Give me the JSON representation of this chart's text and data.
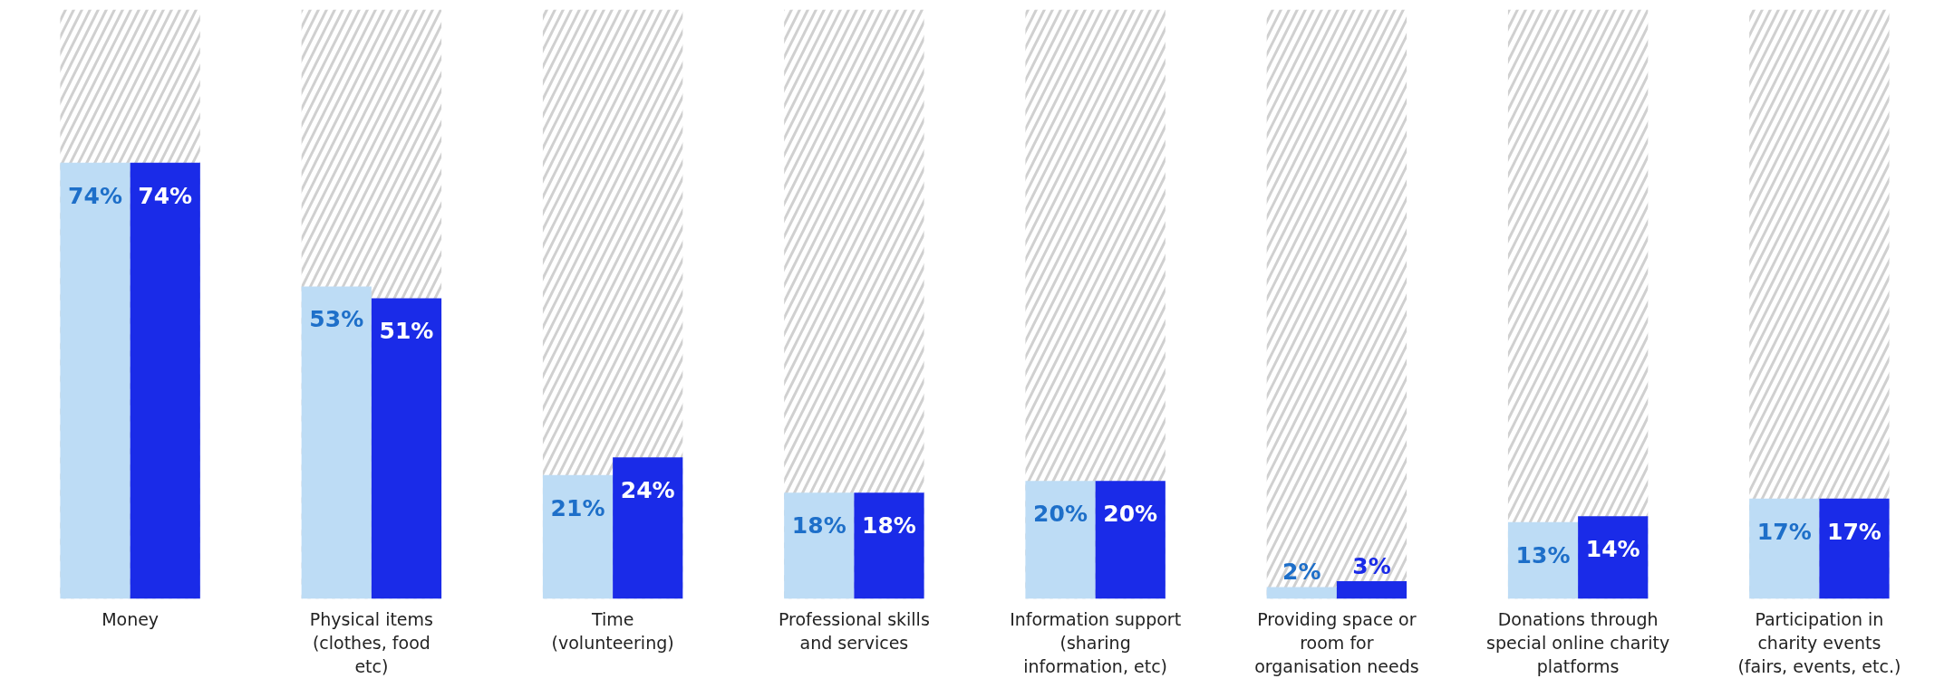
{
  "chart_data": {
    "type": "bar",
    "categories": [
      "Money",
      "Physical items\n(clothes, food\netc)",
      "Time\n(volunteering)",
      "Professional skills\nand services",
      "Information support\n(sharing\ninformation, etc)",
      "Providing space or\nroom for\norganisation needs",
      "Donations through\nspecial online charity\nplatforms",
      "Participation in\ncharity events\n(fairs, events, etc.)"
    ],
    "series": [
      {
        "color": "#bddcf5",
        "values": [
          74,
          53,
          21,
          18,
          20,
          2,
          13,
          17
        ],
        "value_labels": [
          "74%",
          "53%",
          "21%",
          "18%",
          "20%",
          "2%",
          "13%",
          "17%"
        ]
      },
      {
        "color": "#1a2be8",
        "values": [
          74,
          51,
          24,
          18,
          20,
          3,
          14,
          17
        ],
        "value_labels": [
          "74%",
          "51%",
          "24%",
          "18%",
          "20%",
          "3%",
          "14%",
          "17%"
        ]
      }
    ],
    "bands": [
      {
        "axis": "x",
        "from": "Money",
        "to": "Money",
        "color": "#d0d0d0"
      },
      {
        "axis": "x",
        "from": "Physical items\n(clothes, food\netc)",
        "to": "Physical items\n(clothes, food\netc)",
        "color": "#d0d0d0"
      },
      {
        "axis": "x",
        "from": "Time\n(volunteering)",
        "to": "Time\n(volunteering)",
        "color": "#d0d0d0"
      },
      {
        "axis": "x",
        "from": "Professional skills\nand services",
        "to": "Professional skills\nand services",
        "color": "#d0d0d0"
      },
      {
        "axis": "x",
        "from": "Information support\n(sharing\ninformation, etc)",
        "to": "Information support\n(sharing\ninformation, etc)",
        "color": "#d0d0d0"
      },
      {
        "axis": "x",
        "from": "Providing space or\nroom for\norganisation needs",
        "to": "Providing space or\nroom for\norganisation needs",
        "color": "#d0d0d0"
      },
      {
        "axis": "x",
        "from": "Donations through\nspecial online charity\nplatforms",
        "to": "Donations through\nspecial online charity\nplatforms",
        "color": "#d0d0d0"
      },
      {
        "axis": "x",
        "from": "Participation in\ncharity events\n(fairs, events, etc.)",
        "to": "Participation in\ncharity events\n(fairs, events, etc.)",
        "color": "#d0d0d0"
      }
    ],
    "tick_labels": "x"
  }
}
